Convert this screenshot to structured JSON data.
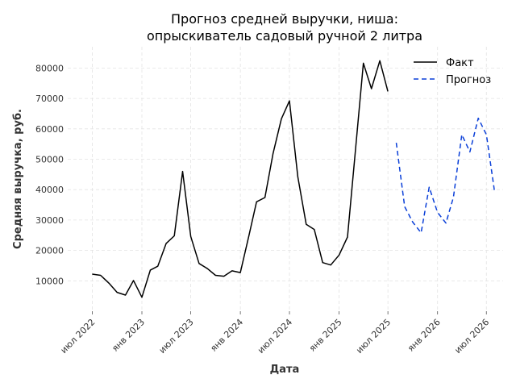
{
  "chart_data": {
    "type": "line",
    "title_line1": "Прогноз средней выручки, ниша:",
    "title_line2": "опрыскиватель садовый ручной 2 литра",
    "xlabel": "Дата",
    "ylabel": "Средняя выручка, руб.",
    "x_range": [
      "2022-04-01",
      "2026-09-01"
    ],
    "ylim": [
      0,
      87000
    ],
    "grid": true,
    "legend_position": "top-right",
    "y_ticks": [
      10000,
      20000,
      30000,
      40000,
      50000,
      60000,
      70000,
      80000
    ],
    "x_ticks": [
      {
        "date": "2022-07-01",
        "label": "июл 2022"
      },
      {
        "date": "2023-01-01",
        "label": "янв 2023"
      },
      {
        "date": "2023-07-01",
        "label": "июл 2023"
      },
      {
        "date": "2024-01-01",
        "label": "янв 2024"
      },
      {
        "date": "2024-07-01",
        "label": "июл 2024"
      },
      {
        "date": "2025-01-01",
        "label": "янв 2025"
      },
      {
        "date": "2025-07-01",
        "label": "июл 2025"
      },
      {
        "date": "2026-01-01",
        "label": "янв 2026"
      },
      {
        "date": "2026-07-01",
        "label": "июл 2026"
      }
    ],
    "series": [
      {
        "name": "Факт",
        "color": "#000000",
        "style": "solid",
        "x": [
          "2022-07-01",
          "2022-08-01",
          "2022-09-01",
          "2022-10-01",
          "2022-11-01",
          "2022-12-01",
          "2023-01-01",
          "2023-02-01",
          "2023-03-01",
          "2023-04-01",
          "2023-05-01",
          "2023-06-01",
          "2023-07-01",
          "2023-08-01",
          "2023-09-01",
          "2023-10-01",
          "2023-11-01",
          "2023-12-01",
          "2024-01-01",
          "2024-02-01",
          "2024-03-01",
          "2024-04-01",
          "2024-05-01",
          "2024-06-01",
          "2024-07-01",
          "2024-08-01",
          "2024-09-01",
          "2024-10-01",
          "2024-11-01",
          "2024-12-01",
          "2025-01-01",
          "2025-02-01",
          "2025-03-01",
          "2025-04-01",
          "2025-05-01",
          "2025-06-01",
          "2025-07-01"
        ],
        "y": [
          12200,
          11800,
          9200,
          6200,
          5300,
          10100,
          4600,
          13500,
          14800,
          22300,
          24800,
          46000,
          24600,
          15700,
          14000,
          11800,
          11500,
          13300,
          12700,
          24600,
          36000,
          37400,
          51800,
          63300,
          69200,
          44200,
          28600,
          26900,
          16000,
          15200,
          18500,
          24400,
          51300,
          81600,
          73200,
          82400,
          72300
        ]
      },
      {
        "name": "Прогноз",
        "color": "#0a3fd8",
        "style": "dashed",
        "x": [
          "2025-08-01",
          "2025-09-01",
          "2025-10-01",
          "2025-11-01",
          "2025-12-01",
          "2026-01-01",
          "2026-02-01",
          "2026-03-01",
          "2026-04-01",
          "2026-05-01",
          "2026-06-01",
          "2026-07-01",
          "2026-08-01"
        ],
        "y": [
          55400,
          34400,
          29300,
          25800,
          40800,
          32500,
          29000,
          37500,
          58100,
          52400,
          63500,
          58100,
          39000
        ]
      }
    ]
  }
}
